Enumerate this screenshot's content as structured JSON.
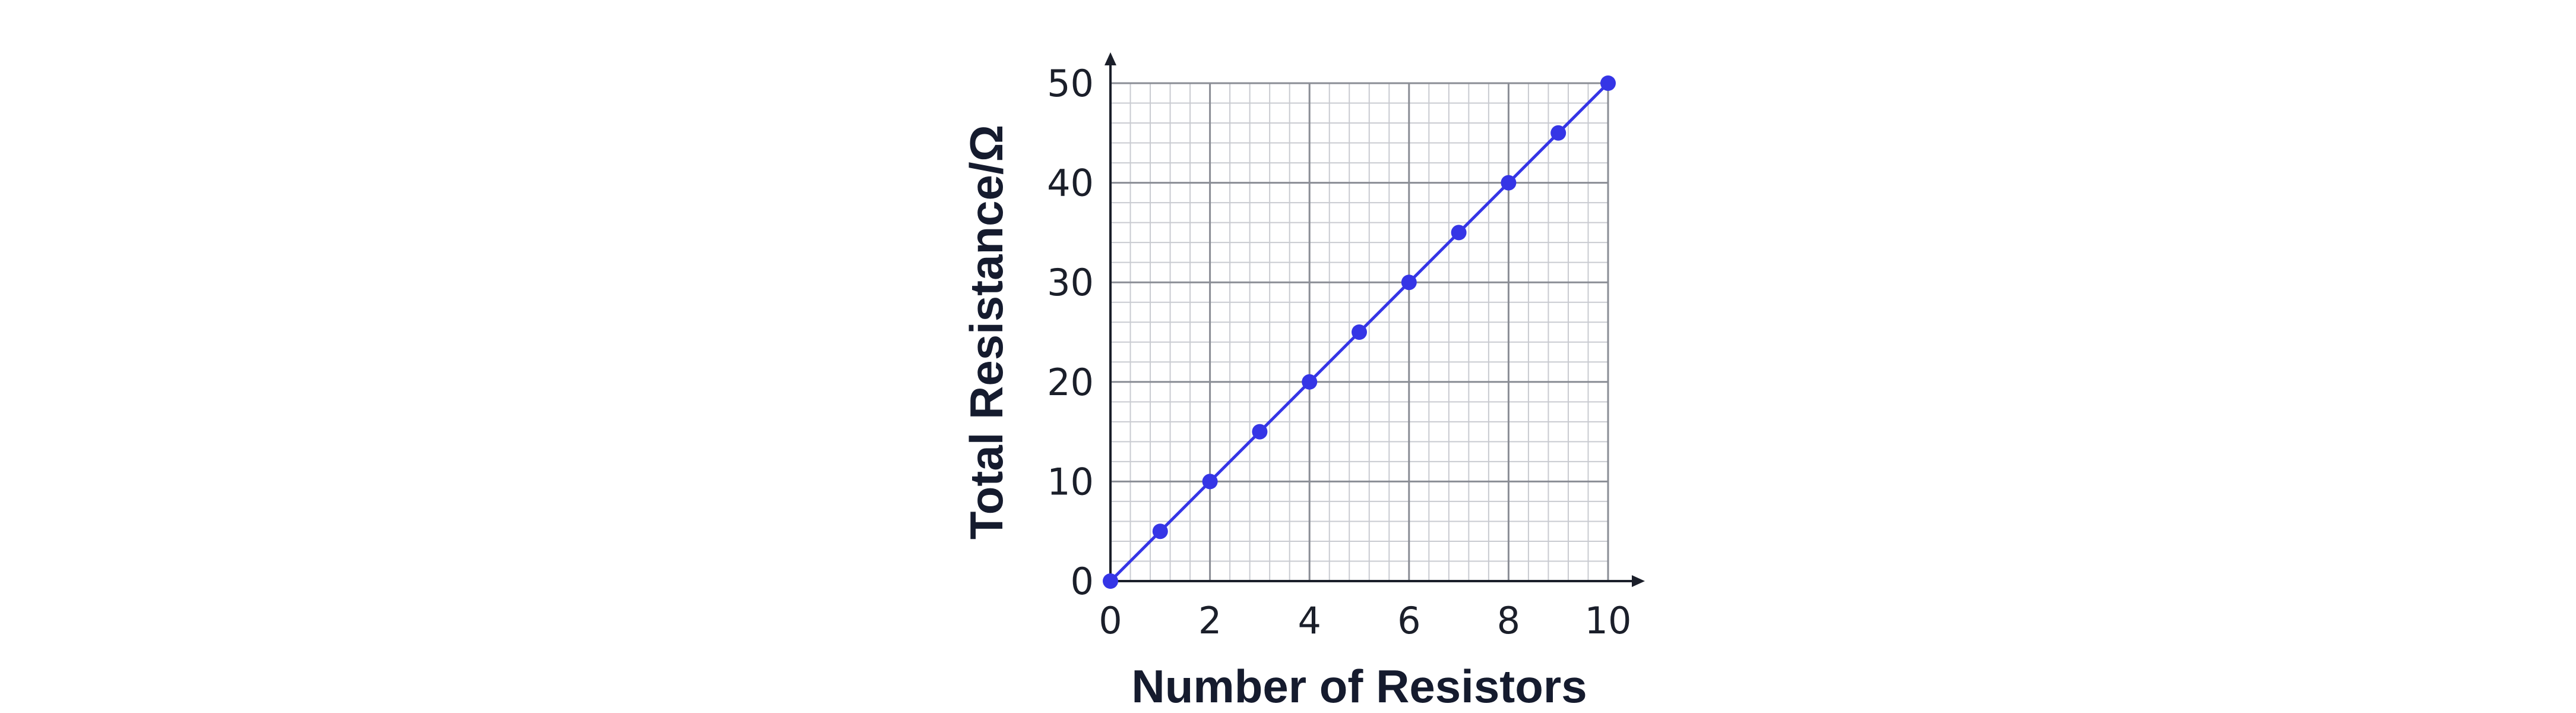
{
  "chart_data": {
    "type": "line",
    "title": "",
    "xlabel": "Number of Resistors",
    "ylabel": "Total Resistance/Ω",
    "xlim": [
      0,
      10
    ],
    "ylim": [
      0,
      50
    ],
    "x_ticks": [
      0,
      2,
      4,
      6,
      8,
      10
    ],
    "y_ticks": [
      0,
      10,
      20,
      30,
      40,
      50
    ],
    "x_minor_step": 0.4,
    "y_minor_step": 2,
    "grid": true,
    "legend": "none",
    "series": [
      {
        "color": "#3535e6",
        "marker": "circle",
        "x": [
          0,
          1,
          2,
          3,
          4,
          5,
          6,
          7,
          8,
          9,
          10
        ],
        "y": [
          0,
          5,
          10,
          15,
          20,
          25,
          30,
          35,
          40,
          45,
          50
        ]
      }
    ]
  }
}
